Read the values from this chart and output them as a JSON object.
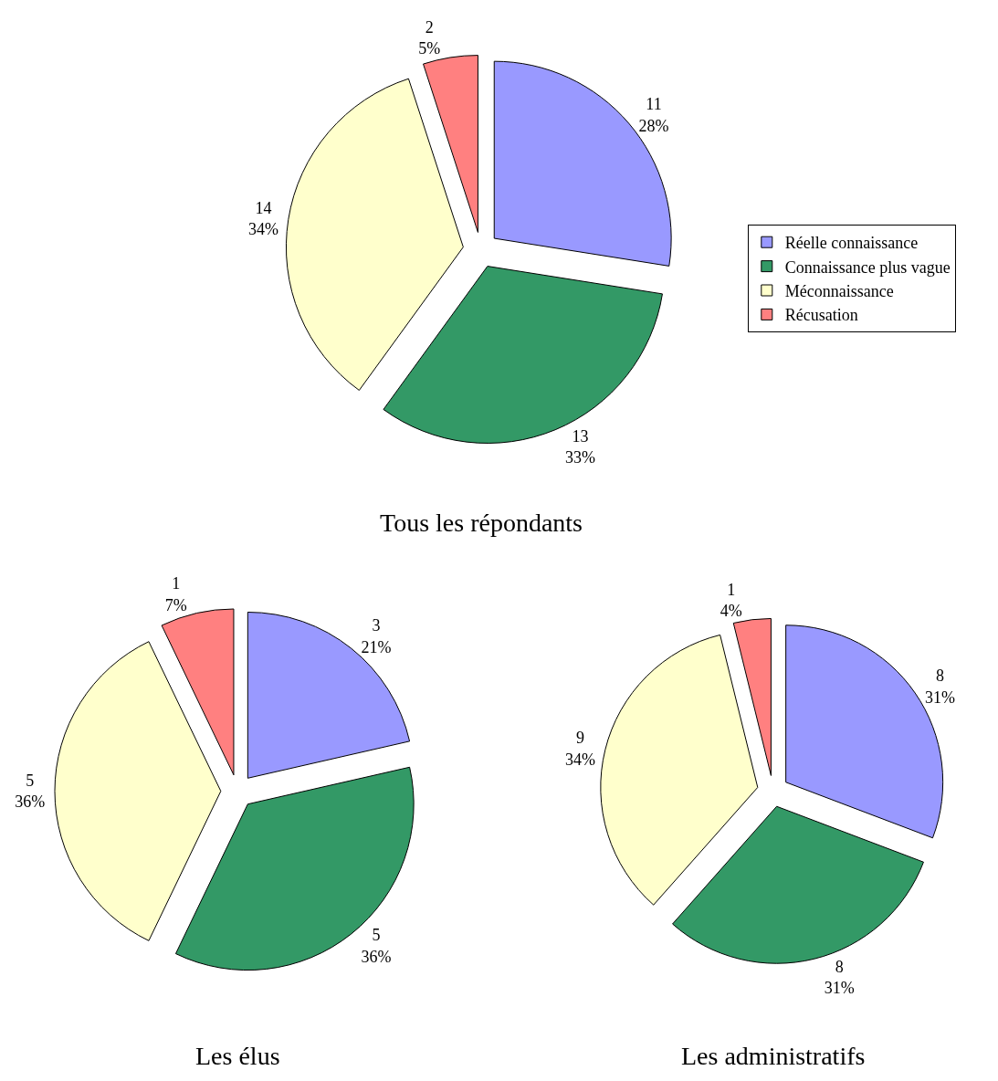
{
  "chart_data": [
    {
      "type": "pie",
      "title": "Tous les répondants",
      "categories": [
        "Réelle connaissance",
        "Connaissance plus vague",
        "Méconnaissance",
        "Récusation"
      ],
      "values": [
        11,
        13,
        14,
        2
      ],
      "value_labels": [
        "11\n28%",
        "13\n33%",
        "14\n34%",
        "2\n5%"
      ],
      "colors": [
        "#9999ff",
        "#339966",
        "#ffffcc",
        "#ff8080"
      ],
      "legend": "right"
    },
    {
      "type": "pie",
      "title": "Les élus",
      "categories": [
        null,
        null,
        null,
        null
      ],
      "values": [
        3,
        5,
        5,
        1
      ],
      "value_labels": [
        "3\n21%",
        "5\n36%",
        "5\n36%",
        "1\n7%"
      ],
      "colors": [
        "#9999ff",
        "#339966",
        "#ffffcc",
        "#ff8080"
      ],
      "legend": false
    },
    {
      "type": "pie",
      "title": "Les administratifs",
      "categories": [
        null,
        null,
        null,
        null
      ],
      "values": [
        8,
        8,
        9,
        1
      ],
      "value_labels": [
        "8\n31%",
        "8\n31%",
        "9\n34%",
        "1\n4%"
      ],
      "colors": [
        "#9999ff",
        "#339966",
        "#ffffcc",
        "#ff8080"
      ],
      "legend": false
    }
  ]
}
